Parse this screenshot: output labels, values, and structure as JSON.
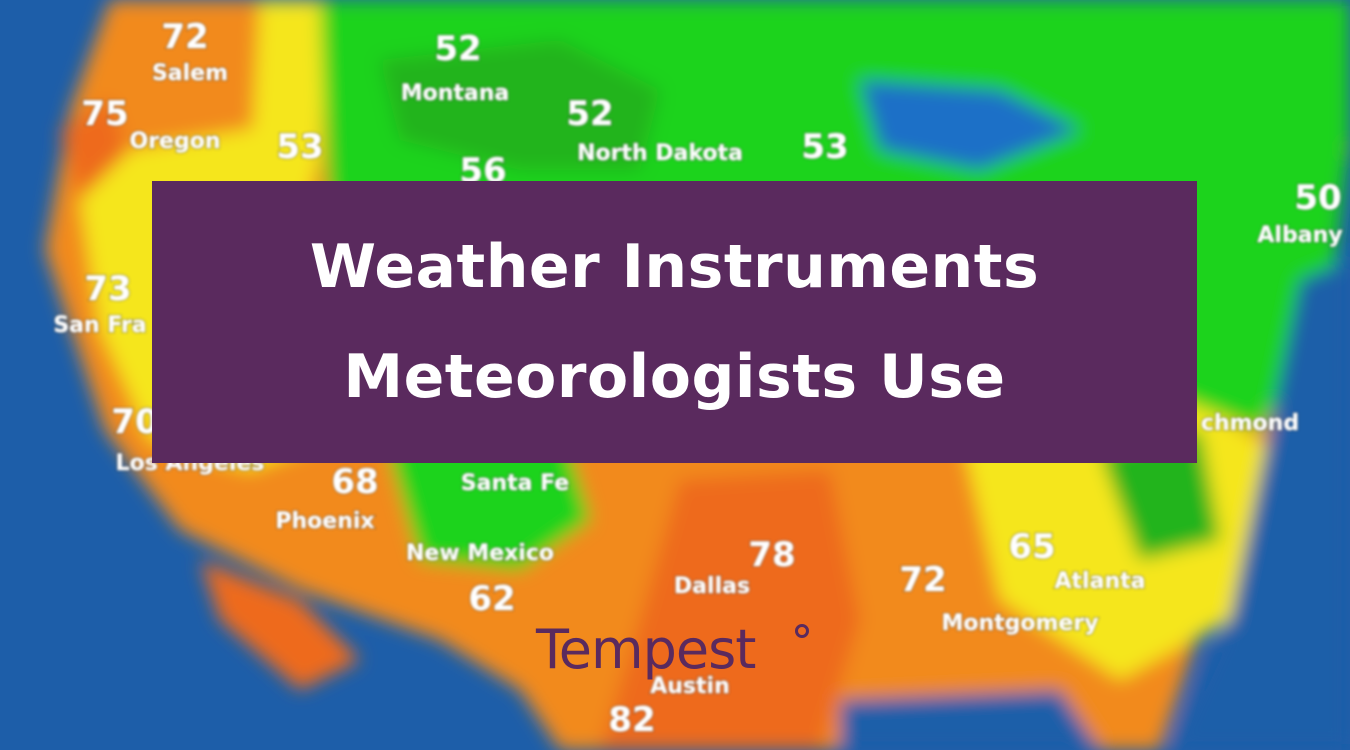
{
  "map": {
    "labels": [
      "72",
      "Salem",
      "75",
      "Oregon",
      "52",
      "Montana",
      "52",
      "North Dakota",
      "53",
      "56",
      "53",
      "50",
      "Albany",
      "73",
      "San Fra",
      "70",
      "Los Angeles",
      "68",
      "Phoenix",
      "Santa Fe",
      "New Mexico",
      "62",
      "78",
      "Dallas",
      "72",
      "Montgomery",
      "65",
      "Atlanta",
      "82",
      "Austin",
      "chmond"
    ]
  },
  "header": {
    "title_lines": [
      "Weather Instruments",
      "Meteorologists Use"
    ]
  },
  "logo": {
    "text": "Tempest"
  }
}
